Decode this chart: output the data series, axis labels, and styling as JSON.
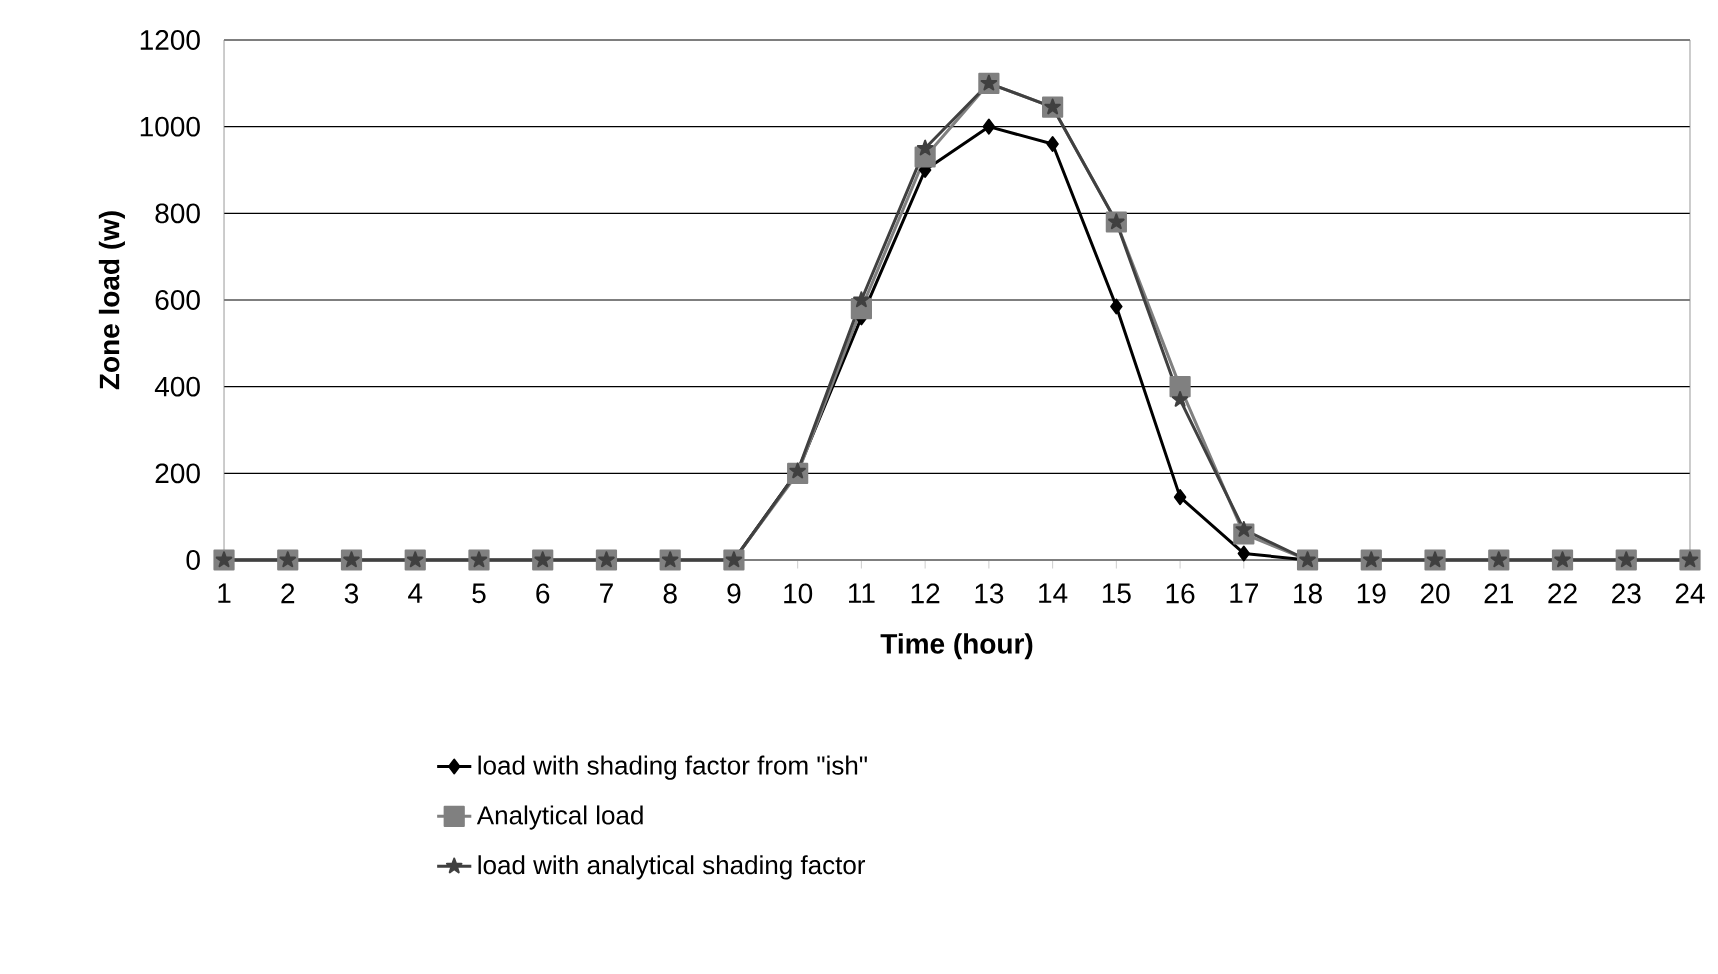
{
  "chart_data": {
    "type": "line",
    "xlabel": "Time (hour)",
    "ylabel": "Zone load (w)",
    "categories": [
      "1",
      "2",
      "3",
      "4",
      "5",
      "6",
      "7",
      "8",
      "9",
      "10",
      "11",
      "12",
      "13",
      "14",
      "15",
      "16",
      "17",
      "18",
      "19",
      "20",
      "21",
      "22",
      "23",
      "24"
    ],
    "series": [
      {
        "name": "load with shading factor from \"ish\"",
        "color": "#000000",
        "marker": "diamond",
        "values": [
          0,
          0,
          0,
          0,
          0,
          0,
          0,
          0,
          0,
          205,
          560,
          900,
          1000,
          960,
          585,
          145,
          15,
          0,
          0,
          0,
          0,
          0,
          0,
          0
        ]
      },
      {
        "name": "Analytical load",
        "color": "#808080",
        "marker": "square",
        "values": [
          0,
          0,
          0,
          0,
          0,
          0,
          0,
          0,
          0,
          200,
          580,
          930,
          1100,
          1045,
          780,
          400,
          60,
          0,
          0,
          0,
          0,
          0,
          0,
          0
        ]
      },
      {
        "name": "load with analytical shading factor",
        "color": "#404040",
        "marker": "star",
        "values": [
          0,
          0,
          0,
          0,
          0,
          0,
          0,
          0,
          0,
          205,
          600,
          950,
          1100,
          1045,
          780,
          370,
          70,
          0,
          0,
          0,
          0,
          0,
          0,
          0
        ]
      }
    ],
    "ylim": [
      0,
      1200
    ],
    "yticks": [
      0,
      200,
      400,
      600,
      800,
      1000,
      1200
    ],
    "grid": "y",
    "legend": "bottom"
  }
}
